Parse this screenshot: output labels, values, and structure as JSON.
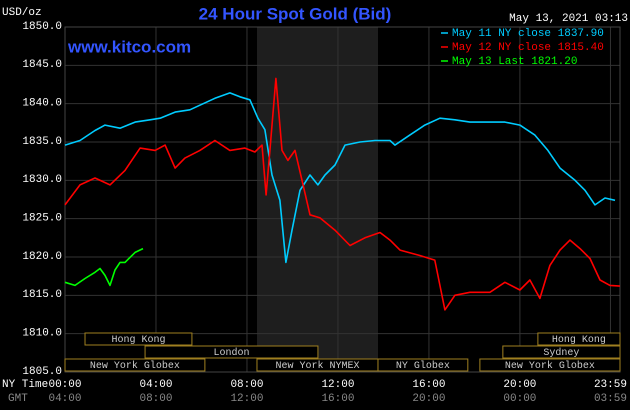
{
  "chart_data": {
    "type": "line",
    "title": "24 Hour Spot Gold (Bid)",
    "timestamp": "May 13, 2021 03:13",
    "watermark": "www.kitco.com",
    "y_label": "USD/oz",
    "x_label": "NY Time",
    "x2_label": "GMT",
    "xlim": [
      0,
      24.4
    ],
    "ylim": [
      1805,
      1850
    ],
    "xticks": [
      {
        "value": 0,
        "label": "00:00"
      },
      {
        "value": 4,
        "label": "04:00"
      },
      {
        "value": 8,
        "label": "08:00"
      },
      {
        "value": 12,
        "label": "12:00"
      },
      {
        "value": 16,
        "label": "16:00"
      },
      {
        "value": 20,
        "label": "20:00"
      },
      {
        "value": 23.98,
        "label": "23:59"
      }
    ],
    "gmt_ticks": [
      {
        "value": 0,
        "label": "04:00"
      },
      {
        "value": 4,
        "label": "08:00"
      },
      {
        "value": 8,
        "label": "12:00"
      },
      {
        "value": 12,
        "label": "16:00"
      },
      {
        "value": 16,
        "label": "20:00"
      },
      {
        "value": 20,
        "label": "00:00"
      },
      {
        "value": 23.98,
        "label": "03:59"
      }
    ],
    "yticks": [
      {
        "value": 1805,
        "label": "1805.0"
      },
      {
        "value": 1810,
        "label": "1810.0"
      },
      {
        "value": 1815,
        "label": "1815.0"
      },
      {
        "value": 1820,
        "label": "1820.0"
      },
      {
        "value": 1825,
        "label": "1825.0"
      },
      {
        "value": 1830,
        "label": "1830.0"
      },
      {
        "value": 1835,
        "label": "1835.0"
      },
      {
        "value": 1840,
        "label": "1840.0"
      },
      {
        "value": 1845,
        "label": "1845.0"
      },
      {
        "value": 1850,
        "label": "1850.0"
      }
    ],
    "grid": true,
    "highlight": [
      8.44,
      13.76
    ],
    "series": [
      {
        "name": "May 11 NY close 1837.90",
        "color": "#00ccff",
        "x": [
          0,
          0.66,
          1.32,
          1.76,
          2.42,
          3.08,
          3.74,
          4.18,
          4.84,
          5.49,
          5.93,
          6.59,
          7.25,
          7.69,
          8.13,
          8.48,
          8.79,
          9.1,
          9.45,
          9.71,
          9.98,
          10.33,
          10.77,
          11.12,
          11.43,
          11.87,
          12.31,
          12.97,
          13.63,
          14.29,
          14.51,
          15.16,
          15.82,
          16.48,
          17.14,
          17.8,
          18.68,
          19.34,
          20,
          20.66,
          21.23,
          21.76,
          22.42,
          22.86,
          23.3,
          23.74,
          24.18
        ],
        "values": [
          1834.6,
          1835.2,
          1836.5,
          1837.2,
          1836.8,
          1837.6,
          1837.9,
          1838.1,
          1838.9,
          1839.2,
          1839.8,
          1840.7,
          1841.4,
          1840.9,
          1840.5,
          1838.1,
          1836.6,
          1830.7,
          1827.4,
          1819.3,
          1823.5,
          1828.7,
          1830.7,
          1829.4,
          1830.7,
          1832.0,
          1834.6,
          1835.0,
          1835.2,
          1835.2,
          1834.6,
          1835.9,
          1837.2,
          1838.1,
          1837.9,
          1837.6,
          1837.6,
          1837.6,
          1837.2,
          1835.9,
          1833.9,
          1831.6,
          1830.0,
          1828.7,
          1826.8,
          1827.7,
          1827.4
        ]
      },
      {
        "name": "May 12 NY close 1815.40",
        "color": "#ff0000",
        "x": [
          0,
          0.66,
          1.32,
          1.98,
          2.64,
          3.3,
          3.96,
          4.4,
          4.84,
          5.27,
          5.93,
          6.59,
          7.25,
          7.91,
          8.35,
          8.66,
          8.84,
          9.01,
          9.27,
          9.54,
          9.8,
          10.11,
          10.42,
          10.77,
          11.21,
          11.87,
          12.53,
          13.19,
          13.85,
          14.29,
          14.73,
          15.6,
          16.26,
          16.7,
          17.14,
          17.8,
          18.68,
          19.34,
          20,
          20.44,
          20.88,
          21.32,
          21.76,
          22.2,
          22.64,
          23.08,
          23.52,
          23.96,
          24.4
        ],
        "values": [
          1826.8,
          1829.4,
          1830.3,
          1829.4,
          1831.3,
          1834.2,
          1833.9,
          1834.6,
          1831.6,
          1832.9,
          1833.9,
          1835.2,
          1833.9,
          1834.2,
          1833.7,
          1834.6,
          1828.1,
          1833.9,
          1843.3,
          1833.9,
          1832.6,
          1833.9,
          1830.0,
          1825.5,
          1825.1,
          1823.5,
          1821.5,
          1822.5,
          1823.2,
          1822.2,
          1820.9,
          1820.2,
          1819.6,
          1813.1,
          1815.0,
          1815.4,
          1815.4,
          1816.7,
          1815.7,
          1817.0,
          1814.6,
          1818.9,
          1820.9,
          1822.2,
          1821.1,
          1819.8,
          1817.0,
          1816.3,
          1816.2
        ]
      },
      {
        "name": "May 13 Last 1821.20",
        "color": "#00ff00",
        "x": [
          0,
          0.44,
          0.88,
          1.32,
          1.54,
          1.76,
          1.98,
          2.2,
          2.42,
          2.64,
          3.08,
          3.43
        ],
        "values": [
          1816.7,
          1816.3,
          1817.2,
          1818.0,
          1818.5,
          1817.6,
          1816.3,
          1818.3,
          1819.3,
          1819.3,
          1820.6,
          1821.1
        ]
      }
    ],
    "sessions": [
      [
        {
          "label": "Hong Kong",
          "start": 0.88,
          "end": 5.58
        },
        {
          "label": "Hong Kong",
          "start": 20.79,
          "end": 24.4
        }
      ],
      [
        {
          "label": "London",
          "start": 3.52,
          "end": 11.12
        },
        {
          "label": "Sydney",
          "start": 19.25,
          "end": 24.4
        }
      ],
      [
        {
          "label": "New York Globex",
          "start": 0,
          "end": 6.15
        },
        {
          "label": "New York NYMEX",
          "start": 8.44,
          "end": 13.76
        },
        {
          "label": "NY Globex",
          "start": 13.76,
          "end": 17.71
        },
        {
          "label": "New York Globex",
          "start": 18.24,
          "end": 24.4
        }
      ]
    ]
  }
}
